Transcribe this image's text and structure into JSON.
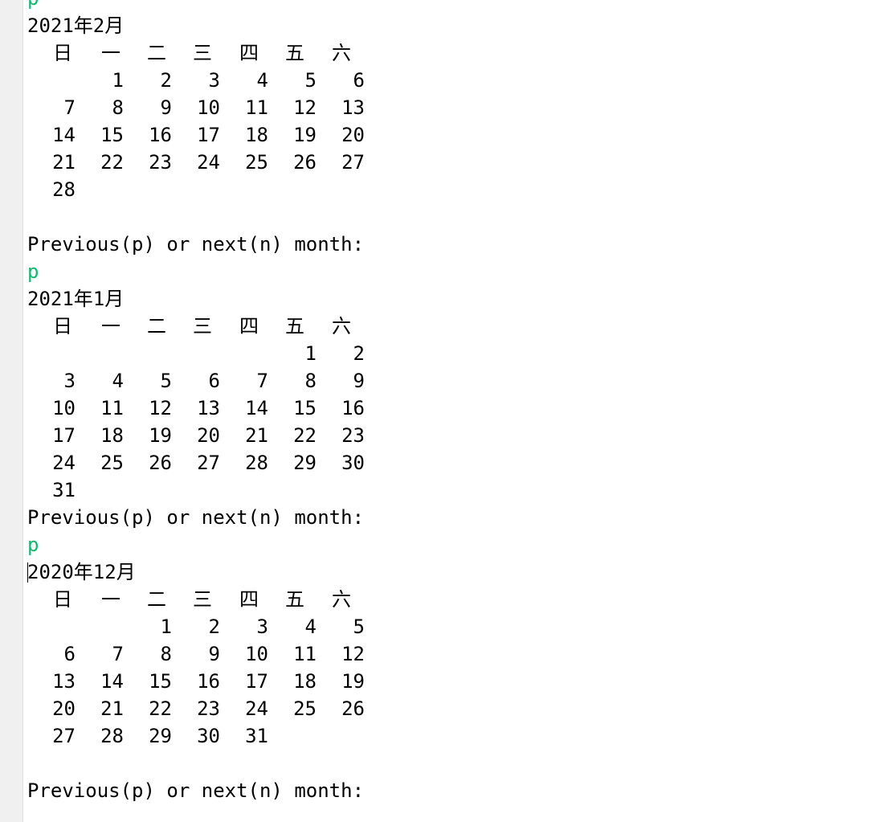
{
  "console": {
    "prompt_text": "Previous(p) or next(n) month:",
    "top_input": "p"
  },
  "weekdays": [
    "日",
    "一",
    "二",
    "三",
    "四",
    "五",
    "六"
  ],
  "months": [
    {
      "title": "2021年2月",
      "rows": [
        [
          "",
          "1",
          "2",
          "3",
          "4",
          "5",
          "6"
        ],
        [
          "7",
          "8",
          "9",
          "10",
          "11",
          "12",
          "13"
        ],
        [
          "14",
          "15",
          "16",
          "17",
          "18",
          "19",
          "20"
        ],
        [
          "21",
          "22",
          "23",
          "24",
          "25",
          "26",
          "27"
        ],
        [
          "28",
          "",
          "",
          "",
          "",
          "",
          ""
        ]
      ],
      "trailing_blank": true,
      "input_after": "p"
    },
    {
      "title": "2021年1月",
      "rows": [
        [
          "",
          "",
          "",
          "",
          "",
          "1",
          "2"
        ],
        [
          "3",
          "4",
          "5",
          "6",
          "7",
          "8",
          "9"
        ],
        [
          "10",
          "11",
          "12",
          "13",
          "14",
          "15",
          "16"
        ],
        [
          "17",
          "18",
          "19",
          "20",
          "21",
          "22",
          "23"
        ],
        [
          "24",
          "25",
          "26",
          "27",
          "28",
          "29",
          "30"
        ],
        [
          "31",
          "",
          "",
          "",
          "",
          "",
          ""
        ]
      ],
      "trailing_blank": false,
      "input_after": "p"
    },
    {
      "title": "2020年12月",
      "rows": [
        [
          "",
          "",
          "1",
          "2",
          "3",
          "4",
          "5"
        ],
        [
          "6",
          "7",
          "8",
          "9",
          "10",
          "11",
          "12"
        ],
        [
          "13",
          "14",
          "15",
          "16",
          "17",
          "18",
          "19"
        ],
        [
          "20",
          "21",
          "22",
          "23",
          "24",
          "25",
          "26"
        ],
        [
          "27",
          "28",
          "29",
          "30",
          "31",
          "",
          ""
        ]
      ],
      "trailing_blank": true,
      "input_after": ""
    }
  ]
}
